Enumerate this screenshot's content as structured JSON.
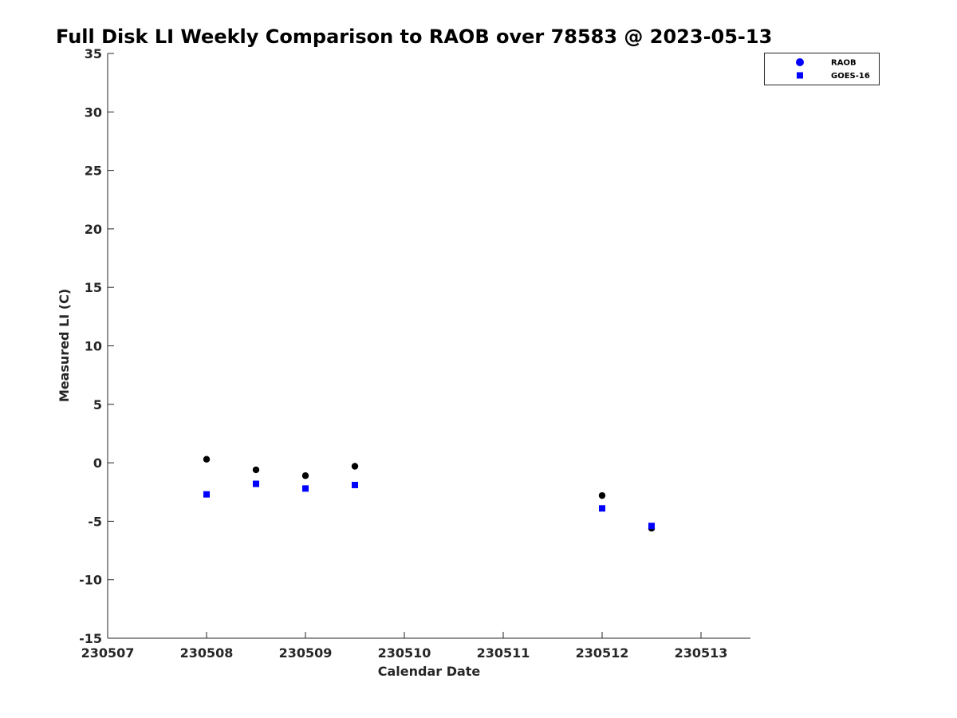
{
  "chart_data": {
    "type": "scatter",
    "title": "Full Disk LI Weekly Comparison to RAOB over 78583 @ 2023-05-13",
    "xlabel": "Calendar Date",
    "ylabel": "Measured LI (C)",
    "xlim": [
      230507,
      230513.5
    ],
    "ylim": [
      -15,
      35
    ],
    "x_ticks": [
      "230507",
      "230508",
      "230509",
      "230510",
      "230511",
      "230512",
      "230513"
    ],
    "y_ticks": [
      "35",
      "30",
      "25",
      "20",
      "15",
      "10",
      "5",
      "0",
      "-5",
      "-10",
      "-15"
    ],
    "grid": false,
    "legend_position": "top-right",
    "series": [
      {
        "name": "RAOB",
        "marker": "circle",
        "color": "#000000",
        "legend_color": "#0000ff",
        "x": [
          230508,
          230508.5,
          230509,
          230509.5,
          230512,
          230512.5
        ],
        "y": [
          0.3,
          -0.6,
          -1.1,
          -0.3,
          -2.8,
          -5.6
        ]
      },
      {
        "name": "GOES-16",
        "marker": "square",
        "color": "#0000ff",
        "legend_color": "#0000ff",
        "x": [
          230508,
          230508.5,
          230509,
          230509.5,
          230512,
          230512.5
        ],
        "y": [
          -2.7,
          -1.8,
          -2.2,
          -1.9,
          -3.9,
          -5.4
        ]
      }
    ]
  }
}
